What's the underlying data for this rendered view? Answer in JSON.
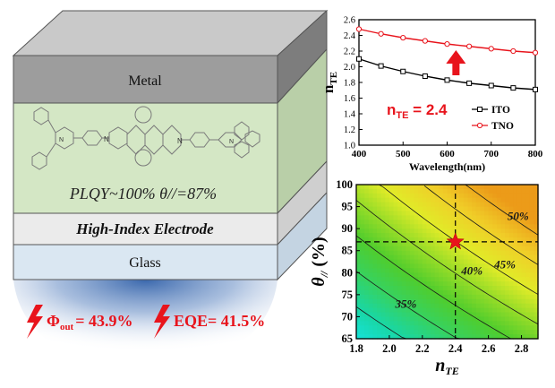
{
  "device": {
    "layers": {
      "metal": "Metal",
      "emitter_text": "PLQY~100% θ//=87%",
      "electrode": "High-Index Electrode",
      "glass": "Glass"
    },
    "results": {
      "phi_symbol": "Φ",
      "phi_sub": "out",
      "phi_value": "= 43.9%",
      "eqe_label": "EQE= 41.5%"
    },
    "colors": {
      "metal": "#9d9d9d",
      "emitter": "#d4e7c5",
      "electrode": "#ebebeb",
      "glass": "#dae7f2",
      "emission": "#2f5fa8",
      "highlight": "#e8141c"
    }
  },
  "chart_data": [
    {
      "type": "line",
      "xlabel": "Wavelength(nm)",
      "ylabel": "n",
      "ylabel_sub": "TE",
      "xlim": [
        400,
        800
      ],
      "ylim": [
        1.0,
        2.6
      ],
      "xticks": [
        "400",
        "500",
        "600",
        "700",
        "800"
      ],
      "yticks": [
        "1.0",
        "1.2",
        "1.4",
        "1.6",
        "1.8",
        "2.0",
        "2.2",
        "2.4",
        "2.6"
      ],
      "series": [
        {
          "name": "ITO",
          "color": "#000000",
          "x": [
            400,
            450,
            500,
            550,
            600,
            650,
            700,
            750,
            800
          ],
          "y": [
            2.1,
            2.01,
            1.94,
            1.88,
            1.83,
            1.79,
            1.76,
            1.73,
            1.71
          ]
        },
        {
          "name": "TNO",
          "color": "#e8141c",
          "x": [
            400,
            450,
            500,
            550,
            600,
            650,
            700,
            750,
            800
          ],
          "y": [
            2.48,
            2.42,
            2.37,
            2.33,
            2.29,
            2.26,
            2.23,
            2.2,
            2.18
          ]
        }
      ],
      "annotation": {
        "text_main": "n",
        "text_sub": "TE",
        "text_value": " = 2.4",
        "arrow": "up"
      }
    },
    {
      "type": "contour",
      "xlabel": "n",
      "xlabel_sub": "TE",
      "ylabel": "θ",
      "ylabel_sub": "//",
      "ylabel_unit": " (%)",
      "xlim": [
        1.8,
        2.9
      ],
      "ylim": [
        65,
        100
      ],
      "xticks": [
        "1.8",
        "2.0",
        "2.2",
        "2.4",
        "2.6",
        "2.8"
      ],
      "yticks": [
        "65",
        "70",
        "75",
        "80",
        "85",
        "90",
        "95",
        "100"
      ],
      "contour_labels": [
        "35%",
        "40%",
        "45%",
        "50%"
      ],
      "levels": [
        0.35,
        0.4,
        0.45,
        0.5
      ],
      "marker": {
        "x": 2.4,
        "y": 87,
        "symbol": "star"
      }
    }
  ]
}
